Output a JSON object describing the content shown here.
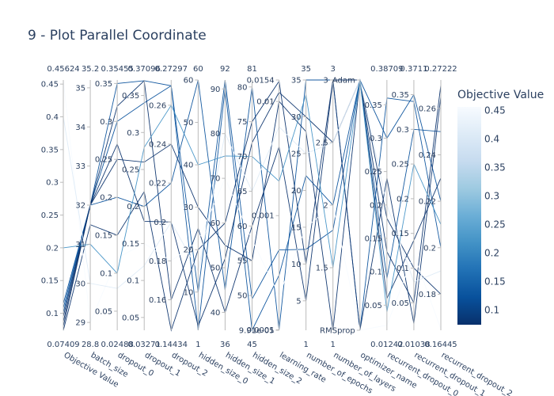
{
  "chart_data": {
    "type": "parallel_coordinates",
    "title": "9 - Plot Parallel Coordinate",
    "colorbar": {
      "title": "Objective Value",
      "range": [
        0.07409,
        0.45624
      ],
      "ticks": [
        "0.1",
        "0.15",
        "0.2",
        "0.25",
        "0.3",
        "0.35",
        "0.4",
        "0.45"
      ],
      "colors": [
        "#08306b",
        "#08519c",
        "#2171b5",
        "#4292c6",
        "#6baed6",
        "#9ecae1",
        "#c6dbef",
        "#deebf7",
        "#f7fbff"
      ]
    },
    "dimensions": [
      {
        "label": "Objective Value",
        "range": [
          0.07409,
          0.45624
        ],
        "min_label": "0.07409",
        "max_label": "0.45624",
        "ticks": [
          [
            "0.1",
            0.1
          ],
          [
            "0.15",
            0.15
          ],
          [
            "0.2",
            0.2
          ],
          [
            "0.25",
            0.25
          ],
          [
            "0.3",
            0.3
          ],
          [
            "0.35",
            0.35
          ],
          [
            "0.4",
            0.4
          ],
          [
            "0.45",
            0.45
          ]
        ]
      },
      {
        "label": "batch_size",
        "range": [
          28.8,
          35.2
        ],
        "min_label": "28.8",
        "max_label": "35.2",
        "ticks": [
          [
            "29",
            29
          ],
          [
            "30",
            30
          ],
          [
            "31",
            31
          ],
          [
            "32",
            32
          ],
          [
            "33",
            33
          ],
          [
            "34",
            34
          ],
          [
            "35",
            35
          ]
        ]
      },
      {
        "label": "dropout_0",
        "range": [
          0.02488,
          0.35455
        ],
        "min_label": "0.02488",
        "max_label": "0.35455",
        "ticks": [
          [
            "0.05",
            0.05
          ],
          [
            "0.1",
            0.1
          ],
          [
            "0.15",
            0.15
          ],
          [
            "0.2",
            0.2
          ],
          [
            "0.25",
            0.25
          ],
          [
            "0.3",
            0.3
          ],
          [
            "0.35",
            0.35
          ]
        ]
      },
      {
        "label": "dropout_1",
        "range": [
          0.03271,
          0.37096
        ],
        "min_label": "0.03271",
        "max_label": "0.37096",
        "ticks": [
          [
            "0.05",
            0.05
          ],
          [
            "0.1",
            0.1
          ],
          [
            "0.15",
            0.15
          ],
          [
            "0.2",
            0.2
          ],
          [
            "0.25",
            0.25
          ],
          [
            "0.3",
            0.3
          ],
          [
            "0.35",
            0.35
          ]
        ]
      },
      {
        "label": "dropout_2",
        "range": [
          0.14434,
          0.27297
        ],
        "min_label": "0.14434",
        "max_label": "0.27297",
        "ticks": [
          [
            "0.16",
            0.16
          ],
          [
            "0.18",
            0.18
          ],
          [
            "0.2",
            0.2
          ],
          [
            "0.22",
            0.22
          ],
          [
            "0.24",
            0.24
          ],
          [
            "0.26",
            0.26
          ]
        ]
      },
      {
        "label": "hidden_size_0",
        "range": [
          1,
          60
        ],
        "min_label": "1",
        "max_label": "60",
        "ticks": [
          [
            "10",
            10
          ],
          [
            "20",
            20
          ],
          [
            "30",
            30
          ],
          [
            "40",
            40
          ],
          [
            "50",
            50
          ],
          [
            "60",
            60
          ]
        ]
      },
      {
        "label": "hidden_size_1",
        "range": [
          36,
          92
        ],
        "min_label": "36",
        "max_label": "92",
        "ticks": [
          [
            "40",
            40
          ],
          [
            "50",
            50
          ],
          [
            "60",
            60
          ],
          [
            "70",
            70
          ],
          [
            "80",
            80
          ],
          [
            "90",
            90
          ]
        ]
      },
      {
        "label": "hidden_size_2",
        "range": [
          45,
          81
        ],
        "min_label": "45",
        "max_label": "81",
        "ticks": [
          [
            "50",
            50
          ],
          [
            "55",
            55
          ],
          [
            "60",
            60
          ],
          [
            "65",
            65
          ],
          [
            "70",
            70
          ],
          [
            "75",
            75
          ],
          [
            "80",
            80
          ]
        ]
      },
      {
        "label": "learning_rate",
        "log": true,
        "range": [
          9.91e-05,
          0.0154
        ],
        "min_label": "",
        "max_label": "",
        "ticks": [
          [
            "9.91e-05",
            9.91e-05
          ],
          [
            "0.0001",
            0.0001
          ],
          [
            "0.001",
            0.001
          ],
          [
            "0.01",
            0.01
          ],
          [
            "0.0154",
            0.0154
          ]
        ]
      },
      {
        "label": "number_of_epochs",
        "range": [
          1,
          35
        ],
        "min_label": "1",
        "max_label": "35",
        "ticks": [
          [
            "5",
            5
          ],
          [
            "10",
            10
          ],
          [
            "15",
            15
          ],
          [
            "20",
            20
          ],
          [
            "25",
            25
          ],
          [
            "30",
            30
          ],
          [
            "35",
            35
          ]
        ]
      },
      {
        "label": "number_of_layers",
        "range": [
          1,
          3
        ],
        "min_label": "1",
        "max_label": "3",
        "ticks": [
          [
            "1.5",
            1.5
          ],
          [
            "2",
            2
          ],
          [
            "2.5",
            2.5
          ],
          [
            "3",
            3
          ]
        ]
      },
      {
        "label": "optimizer_name",
        "categorical": true,
        "range": [
          0,
          1
        ],
        "min_label": "",
        "max_label": "",
        "ticks": [
          [
            "RMSprop",
            0
          ],
          [
            "Adam",
            1
          ]
        ]
      },
      {
        "label": "recurrent_dropout_0",
        "range": [
          0.01242,
          0.38709
        ],
        "min_label": "0.01242",
        "max_label": "0.38709",
        "ticks": [
          [
            "0.05",
            0.05
          ],
          [
            "0.1",
            0.1
          ],
          [
            "0.15",
            0.15
          ],
          [
            "0.2",
            0.2
          ],
          [
            "0.25",
            0.25
          ],
          [
            "0.3",
            0.3
          ],
          [
            "0.35",
            0.35
          ]
        ]
      },
      {
        "label": "recurrent_dropout_1",
        "range": [
          0.01038,
          0.3711
        ],
        "min_label": "0.01038",
        "max_label": "0.3711",
        "ticks": [
          [
            "0.05",
            0.05
          ],
          [
            "0.1",
            0.1
          ],
          [
            "0.15",
            0.15
          ],
          [
            "0.2",
            0.2
          ],
          [
            "0.25",
            0.25
          ],
          [
            "0.3",
            0.3
          ],
          [
            "0.35",
            0.35
          ]
        ]
      },
      {
        "label": "recurrent_dropout_2",
        "range": [
          0.16445,
          0.27222
        ],
        "min_label": "0.16445",
        "max_label": "0.27222",
        "ticks": [
          [
            "0.18",
            0.18
          ],
          [
            "0.2",
            0.2
          ],
          [
            "0.22",
            0.22
          ],
          [
            "0.24",
            0.24
          ],
          [
            "0.26",
            0.26
          ]
        ]
      }
    ],
    "records": [
      [
        0.101,
        32,
        0.35,
        0.37,
        0.27,
        10,
        92,
        49.5,
        0.0005,
        12,
        1.8,
        1,
        0.3,
        0.35,
        0.22
      ],
      [
        0.108,
        32,
        0.2,
        0.2,
        0.22,
        60,
        45,
        80,
        0.0001,
        35,
        3,
        0,
        0.36,
        0.34,
        0.2
      ],
      [
        0.115,
        32,
        0.3,
        0.34,
        0.27,
        1,
        90,
        45,
        0.0003,
        22,
        2,
        1,
        0.09,
        0.3,
        0.25
      ],
      [
        0.095,
        32,
        0.25,
        0.26,
        0.24,
        30,
        55,
        55,
        0.01,
        28,
        1,
        1,
        0.18,
        0.1,
        0.18
      ],
      [
        0.087,
        32,
        0.32,
        0.37,
        0.16,
        25,
        40,
        60,
        0.004,
        5,
        3,
        0,
        0.24,
        0.02,
        0.265
      ],
      [
        0.08,
        32,
        0.27,
        0.18,
        0.2,
        2,
        52,
        72,
        0.012,
        30,
        2.5,
        1,
        0.13,
        0.05,
        0.27
      ],
      [
        0.074,
        31.5,
        0.15,
        0.22,
        0.14434,
        20,
        60,
        75,
        0.015,
        10,
        3,
        1,
        0.06,
        0.14,
        0.23
      ],
      [
        0.456,
        29,
        0.12,
        0.15,
        0.18,
        22,
        70,
        58,
        0.0002,
        15,
        2,
        0,
        0.02,
        0.12,
        0.165
      ],
      [
        0.4,
        30,
        0.08,
        0.12,
        0.2,
        15,
        80,
        65,
        0.006,
        25,
        2.5,
        1,
        0.2,
        0.08,
        0.19
      ],
      [
        0.2,
        31,
        0.1,
        0.28,
        0.26,
        40,
        75,
        70,
        0.002,
        33,
        1.5,
        1,
        0.04,
        0.25,
        0.21
      ]
    ]
  }
}
